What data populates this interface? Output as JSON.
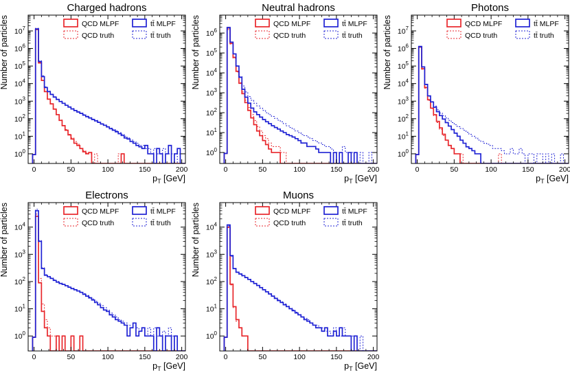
{
  "figure": {
    "ylabel": "Number of particles",
    "xlabel_main": "p",
    "xlabel_sub": "T",
    "xlabel_unit": " [GeV]",
    "xlim": [
      -8,
      205
    ],
    "xticks": [
      "0",
      "50",
      "100",
      "150",
      "200"
    ],
    "legend": [
      {
        "label": "QCD MLPF",
        "color": "#e8262b",
        "style": "solid"
      },
      {
        "label": "QCD truth",
        "color": "#e8262b",
        "style": "dashed"
      },
      {
        "label": "tt̄ MLPF",
        "color": "#1f22d4",
        "style": "solid"
      },
      {
        "label": "tt̄ truth",
        "color": "#1f22d4",
        "style": "dashed"
      }
    ],
    "colors": {
      "qcd": "#e8262b",
      "ttbar": "#1f22d4"
    }
  },
  "chart_data": [
    {
      "type": "histogram-step",
      "title": "Charged hadrons",
      "log_decades": [
        0,
        7
      ],
      "bin_width": 4,
      "x_start": -2,
      "series": [
        {
          "name": "QCD MLPF",
          "values": [
            0.9,
            12000000,
            150000,
            15000,
            3500,
            1300,
            700,
            350,
            170,
            80,
            40,
            22,
            12,
            7,
            4,
            3,
            2,
            1.3,
            1,
            1.2,
            0,
            0,
            0,
            0,
            0,
            0,
            0,
            0,
            0,
            0,
            1,
            0,
            0,
            0,
            0,
            0,
            0,
            0,
            0,
            0,
            0,
            0,
            0,
            0,
            0,
            0,
            0,
            0,
            0,
            0,
            0,
            0
          ]
        },
        {
          "name": "QCD truth",
          "values": [
            0.9,
            14000000,
            160000,
            16000,
            3600,
            1350,
            720,
            360,
            175,
            85,
            42,
            24,
            13,
            8,
            5,
            3.5,
            2,
            1.5,
            1.1,
            1,
            0,
            1,
            0,
            0,
            0,
            0,
            0,
            0,
            0,
            1,
            0,
            0,
            0,
            0,
            0,
            0,
            0,
            0,
            0,
            0,
            0,
            0,
            0,
            0,
            0,
            0,
            0,
            0,
            0,
            0,
            0,
            0
          ]
        },
        {
          "name": "tt̄ MLPF",
          "values": [
            0.9,
            13000000,
            180000,
            25000,
            6000,
            3500,
            2400,
            1700,
            1250,
            950,
            750,
            580,
            460,
            360,
            290,
            240,
            200,
            160,
            130,
            110,
            90,
            75,
            62,
            50,
            42,
            34,
            27,
            22,
            18,
            14,
            11,
            8,
            7,
            5,
            4,
            3,
            2.5,
            2,
            3,
            1,
            1,
            0,
            2,
            1,
            0,
            1,
            3,
            0,
            1,
            2,
            0,
            0
          ]
        },
        {
          "name": "tt̄ truth",
          "values": [
            0.9,
            14000000,
            200000,
            28000,
            6500,
            3700,
            2500,
            1800,
            1300,
            1000,
            780,
            600,
            480,
            380,
            300,
            250,
            210,
            170,
            140,
            115,
            95,
            80,
            65,
            52,
            44,
            36,
            29,
            24,
            20,
            16,
            13,
            10,
            8,
            6,
            5,
            4,
            3,
            3,
            2,
            2,
            1,
            2,
            1,
            1,
            2,
            1,
            1,
            1,
            0,
            1,
            0,
            0
          ]
        }
      ]
    },
    {
      "type": "histogram-step",
      "title": "Neutral hadrons",
      "log_decades": [
        0,
        6
      ],
      "bin_width": 4,
      "x_start": -2,
      "series": [
        {
          "name": "QCD MLPF",
          "values": [
            0.9,
            1800000,
            300000,
            60000,
            12000,
            3000,
            900,
            320,
            130,
            55,
            25,
            12,
            7,
            4,
            2.5,
            1.5,
            1,
            1,
            1,
            0,
            0,
            0,
            0,
            0,
            0,
            0,
            0,
            0,
            0,
            0,
            0,
            0,
            0,
            0,
            0,
            0,
            0,
            0,
            0,
            0,
            0,
            0,
            0,
            0,
            0,
            0,
            0,
            0,
            0,
            0,
            0,
            0
          ]
        },
        {
          "name": "QCD truth",
          "values": [
            0.9,
            1500000,
            280000,
            55000,
            11000,
            3200,
            1100,
            420,
            180,
            80,
            40,
            20,
            12,
            7,
            5,
            3,
            2,
            2,
            2,
            1,
            1,
            0,
            0,
            0,
            0,
            0,
            0,
            0,
            0,
            0,
            0,
            0,
            0,
            0,
            0,
            0,
            0,
            0,
            0,
            0,
            0,
            0,
            0,
            0,
            0,
            0,
            0,
            0,
            0,
            0,
            0,
            0
          ]
        },
        {
          "name": "tt̄ MLPF",
          "values": [
            0.9,
            1900000,
            350000,
            90000,
            22000,
            6000,
            1500,
            600,
            300,
            170,
            110,
            80,
            60,
            45,
            35,
            28,
            22,
            18,
            15,
            12,
            10,
            8,
            7,
            6,
            5,
            4,
            3,
            3,
            2,
            2,
            2,
            1.5,
            1,
            1,
            1,
            1,
            0,
            1,
            0,
            1,
            0,
            0,
            1,
            0,
            1,
            0,
            0,
            0,
            0,
            0,
            0,
            0
          ]
        },
        {
          "name": "tt̄ truth",
          "values": [
            0.9,
            1700000,
            340000,
            88000,
            21000,
            6500,
            2200,
            1100,
            650,
            420,
            300,
            220,
            170,
            130,
            100,
            80,
            65,
            52,
            42,
            35,
            28,
            22,
            18,
            15,
            12,
            10,
            8,
            7,
            6,
            5,
            4,
            3.5,
            3,
            2.5,
            2,
            2,
            1.5,
            1,
            1,
            1,
            2,
            1,
            1,
            1,
            1,
            0,
            1,
            0,
            0,
            1,
            0,
            0
          ]
        }
      ]
    },
    {
      "type": "histogram-step",
      "title": "Photons",
      "log_decades": [
        0,
        7
      ],
      "bin_width": 4,
      "x_start": -2,
      "series": [
        {
          "name": "QCD MLPF",
          "values": [
            0.9,
            1200000,
            70000,
            6000,
            1200,
            400,
            170,
            70,
            30,
            13,
            6,
            3,
            2,
            1,
            1,
            0,
            0,
            0,
            0,
            0,
            0,
            0,
            0,
            0,
            0,
            0,
            0,
            0,
            0,
            0,
            0,
            0,
            0,
            0,
            0,
            0,
            0,
            0,
            0,
            0,
            0,
            0,
            0,
            0,
            0,
            0,
            0,
            0,
            0,
            0,
            0,
            0
          ]
        },
        {
          "name": "QCD truth",
          "values": [
            0.9,
            1100000,
            65000,
            5500,
            1100,
            380,
            150,
            60,
            25,
            11,
            6,
            3,
            2,
            1,
            1,
            1,
            0,
            0,
            0,
            0,
            0,
            0,
            0,
            0,
            0,
            0,
            0,
            0,
            1,
            0,
            0,
            0,
            0,
            0,
            0,
            0,
            0,
            0,
            0,
            0,
            0,
            0,
            0,
            0,
            0,
            0,
            0,
            0,
            0,
            0,
            0,
            0
          ]
        },
        {
          "name": "tt̄ MLPF",
          "values": [
            0.9,
            1300000,
            90000,
            9000,
            2000,
            900,
            450,
            250,
            150,
            95,
            60,
            38,
            24,
            15,
            10,
            6,
            4,
            2.5,
            2,
            1.5,
            1,
            1,
            0,
            0,
            0,
            0,
            0,
            0,
            0,
            0,
            0,
            0,
            0,
            0,
            0,
            0,
            0,
            0,
            0,
            0,
            0,
            0,
            0,
            0,
            0,
            0,
            0,
            0,
            0,
            0,
            0,
            0
          ]
        },
        {
          "name": "tt̄ truth",
          "values": [
            0.9,
            1200000,
            85000,
            8500,
            1900,
            950,
            520,
            320,
            210,
            150,
            110,
            80,
            60,
            45,
            35,
            28,
            22,
            17,
            13,
            10,
            8,
            6,
            5,
            4,
            3.5,
            3,
            2,
            2,
            2,
            1.5,
            1,
            1,
            2,
            1,
            1,
            2,
            1,
            0,
            1,
            1,
            0,
            1,
            1,
            0,
            1,
            0,
            1,
            0,
            0,
            1,
            0,
            0
          ]
        }
      ]
    },
    {
      "type": "histogram-step",
      "title": "Electrons",
      "log_decades": [
        0,
        4
      ],
      "bin_width": 4,
      "x_start": -2,
      "series": [
        {
          "name": "QCD MLPF",
          "values": [
            0.9,
            25000,
            90,
            8,
            2,
            1,
            0,
            0,
            1,
            0,
            1,
            0,
            0,
            1,
            0,
            0,
            1,
            0,
            0,
            0,
            0,
            0,
            0,
            0,
            0,
            0,
            0,
            0,
            0,
            0,
            0,
            0,
            0,
            0,
            0,
            0,
            0,
            0,
            0,
            0,
            0,
            0,
            0,
            0,
            0,
            0,
            0,
            0,
            0,
            0,
            0,
            0
          ]
        },
        {
          "name": "QCD truth",
          "values": [
            0.9,
            30000,
            130,
            15,
            4,
            2,
            1,
            1,
            0,
            0,
            0,
            0,
            0,
            0,
            0,
            0,
            0,
            0,
            0,
            0,
            0,
            0,
            0,
            0,
            0,
            0,
            0,
            0,
            0,
            0,
            0,
            0,
            0,
            0,
            0,
            0,
            0,
            0,
            0,
            0,
            0,
            0,
            0,
            0,
            0,
            0,
            0,
            0,
            0,
            0,
            0,
            0
          ]
        },
        {
          "name": "tt̄ MLPF",
          "values": [
            0.9,
            40000,
            3000,
            300,
            170,
            150,
            130,
            110,
            95,
            85,
            78,
            70,
            62,
            55,
            50,
            45,
            40,
            34,
            29,
            25,
            21,
            17,
            14,
            11,
            9,
            8,
            6,
            5,
            4,
            3.5,
            3,
            2.5,
            1,
            2,
            3,
            1,
            1.5,
            2,
            1,
            1,
            1,
            0,
            2,
            1,
            0,
            1,
            1,
            0,
            1,
            0,
            0,
            0
          ]
        },
        {
          "name": "tt̄ truth",
          "values": [
            0.9,
            45000,
            3200,
            320,
            180,
            155,
            135,
            115,
            100,
            88,
            80,
            72,
            64,
            57,
            51,
            46,
            41,
            36,
            31,
            27,
            23,
            19,
            16,
            13,
            11,
            9,
            7,
            6,
            5,
            4,
            3.5,
            3,
            2.5,
            2,
            3,
            2,
            1.5,
            2,
            1,
            2,
            1,
            2,
            1,
            1,
            1.5,
            1,
            2,
            1,
            1,
            0,
            0,
            0
          ]
        }
      ]
    },
    {
      "type": "histogram-step",
      "title": "Muons",
      "log_decades": [
        0,
        4
      ],
      "bin_width": 4,
      "x_start": -2,
      "series": [
        {
          "name": "QCD MLPF",
          "values": [
            0.9,
            10000,
            80,
            12,
            4,
            2,
            1,
            1,
            0,
            0,
            0,
            0,
            0,
            0,
            0,
            0,
            0,
            0,
            0,
            0,
            0,
            0,
            0,
            0,
            0,
            0,
            0,
            0,
            0,
            0,
            0,
            0,
            0,
            0,
            0,
            0,
            0,
            0,
            0,
            0,
            0,
            0,
            0,
            0,
            0,
            0,
            0,
            0,
            0,
            0,
            0,
            0
          ]
        },
        {
          "name": "QCD truth",
          "values": [
            0.9,
            9500,
            75,
            11,
            3.5,
            2,
            1,
            1,
            0,
            0,
            0,
            0,
            0,
            0,
            0,
            0,
            0,
            0,
            0,
            0,
            0,
            0,
            0,
            0,
            0,
            0,
            0,
            0,
            0,
            0,
            0,
            0,
            0,
            0,
            0,
            0,
            0,
            0,
            0,
            0,
            0,
            0,
            0,
            0,
            0,
            0,
            0,
            0,
            0,
            0,
            0,
            0
          ]
        },
        {
          "name": "tt̄ MLPF",
          "values": [
            0.9,
            12000,
            900,
            300,
            220,
            190,
            165,
            140,
            120,
            100,
            85,
            72,
            60,
            50,
            42,
            35,
            29,
            24,
            20,
            17,
            14,
            12,
            10,
            8.5,
            7,
            6,
            5,
            4,
            3.5,
            3,
            2.5,
            2,
            2,
            1.5,
            2,
            1,
            1,
            1.5,
            1,
            2,
            1,
            1,
            1,
            0,
            1,
            0,
            0,
            0,
            0,
            0,
            0,
            0
          ]
        },
        {
          "name": "tt̄ truth",
          "values": [
            0.9,
            11000,
            850,
            290,
            215,
            185,
            160,
            138,
            118,
            98,
            84,
            71,
            60,
            50,
            42,
            36,
            30,
            25,
            21,
            18,
            15,
            12.5,
            10.5,
            9,
            7.5,
            6,
            5,
            4.5,
            4,
            3,
            2.5,
            2.5,
            2,
            2,
            1.5,
            1.5,
            1,
            2,
            1,
            1,
            2,
            1,
            1,
            1,
            1,
            0,
            1,
            0,
            0,
            0,
            0,
            0
          ]
        }
      ]
    }
  ]
}
